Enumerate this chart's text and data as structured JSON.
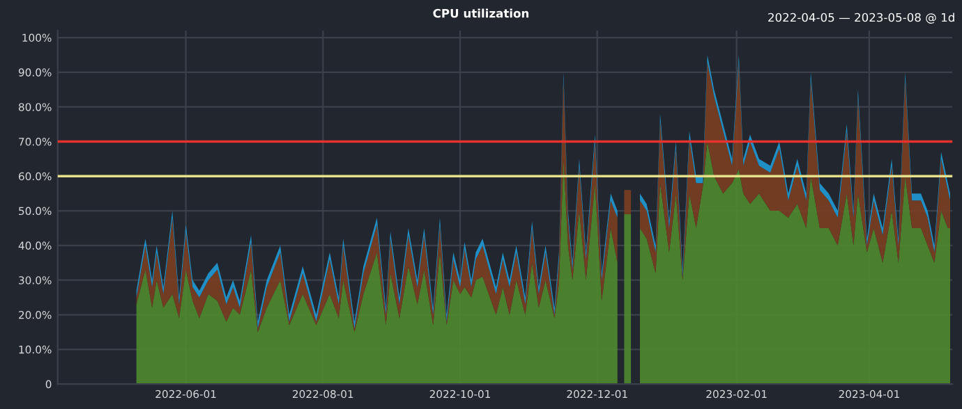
{
  "chart_data": {
    "type": "area",
    "stacked": true,
    "title": "CPU utilization",
    "annotations": [
      "2022-04-05 — 2023-05-08 @ 1d"
    ],
    "x": [
      "2022-05-10",
      "2022-05-14",
      "2022-05-17",
      "2022-05-19",
      "2022-05-22",
      "2022-05-26",
      "2022-05-29",
      "2022-06-01",
      "2022-06-04",
      "2022-06-07",
      "2022-06-11",
      "2022-06-15",
      "2022-06-19",
      "2022-06-22",
      "2022-06-25",
      "2022-06-30",
      "2022-07-03",
      "2022-07-07",
      "2022-07-13",
      "2022-07-17",
      "2022-07-23",
      "2022-07-29",
      "2022-08-04",
      "2022-08-08",
      "2022-08-10",
      "2022-08-15",
      "2022-08-19",
      "2022-08-25",
      "2022-08-29",
      "2022-08-31",
      "2022-09-04",
      "2022-09-08",
      "2022-09-12",
      "2022-09-15",
      "2022-09-19",
      "2022-09-22",
      "2022-09-25",
      "2022-09-28",
      "2022-10-01",
      "2022-10-03",
      "2022-10-06",
      "2022-10-08",
      "2022-10-11",
      "2022-10-17",
      "2022-10-20",
      "2022-10-23",
      "2022-10-26",
      "2022-10-30",
      "2022-11-02",
      "2022-11-05",
      "2022-11-08",
      "2022-11-12",
      "2022-11-14",
      "2022-11-16",
      "2022-11-18",
      "2022-11-20",
      "2022-11-23",
      "2022-11-26",
      "2022-11-30",
      "2022-12-03",
      "2022-12-07",
      "2022-12-10",
      "2022-12-12",
      "2022-12-13",
      "2022-12-16",
      "2022-12-18",
      "2022-12-20",
      "2022-12-23",
      "2022-12-27",
      "2022-12-29",
      "2023-01-02",
      "2023-01-05",
      "2023-01-08",
      "2023-01-11",
      "2023-01-14",
      "2023-01-17",
      "2023-01-19",
      "2023-01-22",
      "2023-01-26",
      "2023-01-30",
      "2023-02-02",
      "2023-02-04",
      "2023-02-07",
      "2023-02-11",
      "2023-02-16",
      "2023-02-20",
      "2023-02-24",
      "2023-02-28",
      "2023-03-04",
      "2023-03-06",
      "2023-03-10",
      "2023-03-14",
      "2023-03-18",
      "2023-03-22",
      "2023-03-25",
      "2023-03-27",
      "2023-03-31",
      "2023-04-03",
      "2023-04-07",
      "2023-04-11",
      "2023-04-14",
      "2023-04-17",
      "2023-04-20",
      "2023-04-24",
      "2023-04-27",
      "2023-04-30",
      "2023-05-03",
      "2023-05-06",
      "2023-05-07"
    ],
    "series": [
      {
        "color": "#4f8a2e",
        "values": [
          23,
          33,
          22,
          30,
          22,
          26,
          19,
          33,
          24,
          19,
          26,
          24,
          18,
          22,
          20,
          33,
          15,
          22,
          30,
          17,
          26,
          17,
          26,
          19,
          30,
          15,
          26,
          38,
          17,
          32,
          19,
          34,
          23,
          33,
          17,
          38,
          17,
          30,
          26,
          28,
          25,
          30,
          31,
          20,
          28,
          20,
          30,
          20,
          35,
          22,
          30,
          19,
          29,
          65,
          40,
          30,
          50,
          30,
          58,
          24,
          45,
          35,
          null,
          49,
          49,
          null,
          45,
          42,
          32,
          58,
          38,
          55,
          30,
          55,
          45,
          57,
          70,
          60,
          55,
          58,
          62,
          55,
          52,
          55,
          50,
          50,
          48,
          52,
          45,
          60,
          45,
          45,
          40,
          55,
          40,
          55,
          38,
          45,
          35,
          50,
          35,
          60,
          45,
          45,
          40,
          35,
          50,
          45,
          45
        ]
      },
      {
        "color": "#7b3f22",
        "values": [
          2,
          7,
          6,
          8,
          4,
          22,
          4,
          11,
          4,
          6,
          4,
          9,
          5,
          6,
          2,
          8,
          1,
          6,
          8,
          1,
          6,
          1,
          10,
          4,
          10,
          1,
          6,
          8,
          3,
          10,
          4,
          9,
          5,
          10,
          3,
          8,
          1,
          6,
          2,
          11,
          3,
          6,
          9,
          6,
          8,
          8,
          8,
          3,
          10,
          4,
          8,
          1,
          7,
          23,
          8,
          3,
          13,
          6,
          12,
          6,
          8,
          13,
          null,
          7,
          7,
          null,
          8,
          8,
          6,
          18,
          7,
          13,
          1,
          16,
          13,
          1,
          23,
          23,
          18,
          5,
          31,
          8,
          18,
          8,
          11,
          18,
          5,
          11,
          8,
          28,
          11,
          8,
          8,
          18,
          8,
          28,
          2,
          8,
          8,
          13,
          5,
          28,
          8,
          8,
          8,
          3,
          15,
          11,
          8
        ]
      },
      {
        "color": "#1f9bd7",
        "values": [
          2,
          2,
          2,
          2,
          2,
          2,
          2,
          2,
          2,
          2,
          2,
          2,
          2,
          2,
          2,
          2,
          2,
          2,
          2,
          2,
          2,
          2,
          2,
          2,
          2,
          2,
          2,
          2,
          2,
          2,
          2,
          2,
          2,
          2,
          2,
          2,
          2,
          2,
          2,
          2,
          2,
          2,
          2,
          2,
          2,
          2,
          2,
          2,
          2,
          2,
          2,
          2,
          2,
          2,
          2,
          2,
          2,
          2,
          2,
          2,
          2,
          2,
          null,
          null,
          null,
          null,
          2,
          2,
          2,
          2,
          2,
          2,
          2,
          2,
          2,
          2,
          2,
          2,
          2,
          2,
          2,
          2,
          2,
          2,
          2,
          2,
          2,
          2,
          2,
          2,
          2,
          2,
          2,
          2,
          2,
          2,
          2,
          2,
          2,
          2,
          2,
          2,
          2,
          2,
          2,
          2,
          2,
          2,
          2
        ]
      }
    ],
    "xlim": [
      "2022-04-05",
      "2023-05-08"
    ],
    "xticks": [
      {
        "value": "2022-06-01",
        "label": "2022-06-01"
      },
      {
        "value": "2022-08-01",
        "label": "2022-08-01"
      },
      {
        "value": "2022-10-01",
        "label": "2022-10-01"
      },
      {
        "value": "2022-12-01",
        "label": "2022-12-01"
      },
      {
        "value": "2023-02-01",
        "label": "2023-02-01"
      },
      {
        "value": "2023-04-01",
        "label": "2023-04-01"
      }
    ],
    "ylim": [
      0,
      102
    ],
    "yticks": [
      0,
      {
        "value": 10,
        "label": "10.0%"
      },
      {
        "value": 20,
        "label": "20.0%"
      },
      {
        "value": 30,
        "label": "30.0%"
      },
      {
        "value": 40,
        "label": "40.0%"
      },
      {
        "value": 50,
        "label": "50.0%"
      },
      {
        "value": 60,
        "label": "60.0%"
      },
      {
        "value": 70,
        "label": "70.0%"
      },
      {
        "value": 80,
        "label": "80.0%"
      },
      {
        "value": 90,
        "label": "90.0%"
      },
      {
        "value": 100,
        "label": "100%"
      }
    ],
    "ref_lines": [
      {
        "axis": "y",
        "value": 70,
        "color": "#e8322e"
      },
      {
        "axis": "y",
        "value": 60,
        "color": "#e6e08a"
      }
    ],
    "grid": true
  }
}
